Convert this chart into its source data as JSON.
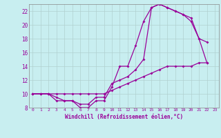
{
  "title": "",
  "xlabel": "Windchill (Refroidissement éolien,°C)",
  "ylabel": "",
  "bg_color": "#c8eef0",
  "line_color": "#990099",
  "grid_color": "#b0d0d0",
  "xlim": [
    -0.5,
    23.5
  ],
  "ylim": [
    8,
    23
  ],
  "xticks": [
    0,
    1,
    2,
    3,
    4,
    5,
    6,
    7,
    8,
    9,
    10,
    11,
    12,
    13,
    14,
    15,
    16,
    17,
    18,
    19,
    20,
    21,
    22,
    23
  ],
  "yticks": [
    8,
    10,
    12,
    14,
    16,
    18,
    20,
    22
  ],
  "line1_x": [
    0,
    1,
    2,
    3,
    4,
    5,
    6,
    7,
    8,
    9,
    10,
    11,
    12,
    13,
    14,
    15,
    16,
    17,
    18,
    19,
    20,
    21,
    22
  ],
  "line1_y": [
    10,
    10,
    10,
    9,
    9,
    9,
    8,
    8,
    9,
    9,
    11,
    14,
    14,
    17,
    20.5,
    22.5,
    23,
    22.5,
    22,
    21.5,
    20.5,
    18,
    14.5
  ],
  "line2_x": [
    0,
    1,
    2,
    3,
    4,
    5,
    6,
    7,
    8,
    9,
    10,
    11,
    12,
    13,
    14,
    15,
    16,
    17,
    18,
    19,
    20,
    21,
    22
  ],
  "line2_y": [
    10,
    10,
    10,
    9.5,
    9,
    9,
    8.5,
    8.5,
    9.5,
    9.5,
    11.5,
    12,
    12.5,
    13.5,
    15,
    22.5,
    23,
    22.5,
    22,
    21.5,
    21,
    18,
    17.5
  ],
  "line3_x": [
    0,
    1,
    2,
    3,
    4,
    5,
    6,
    7,
    8,
    9,
    10,
    11,
    12,
    13,
    14,
    15,
    16,
    17,
    18,
    19,
    20,
    21,
    22
  ],
  "line3_y": [
    10,
    10,
    10,
    10,
    10,
    10,
    10,
    10,
    10,
    10,
    10.5,
    11,
    11.5,
    12,
    12.5,
    13,
    13.5,
    14,
    14,
    14,
    14,
    14.5,
    14.5
  ]
}
